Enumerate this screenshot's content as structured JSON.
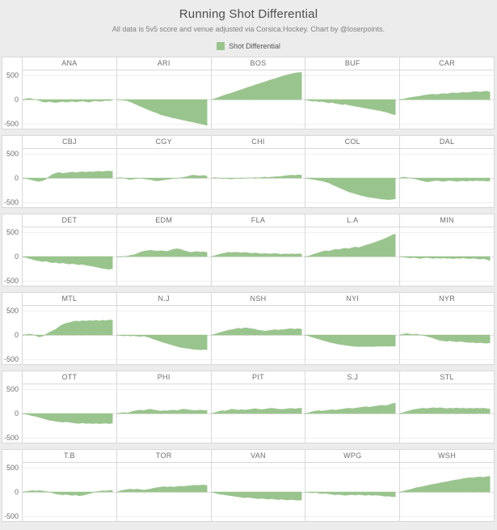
{
  "title": "Running Shot Differential",
  "subtitle": "All data is 5v5 score and venue adjusted via Corsica.Hockey. Chart by @loserpoints.",
  "legend": {
    "label": "Shot Differential",
    "color": "#9ac48e"
  },
  "chart_data": {
    "type": "area",
    "title": "Running Shot Differential",
    "xlabel": "",
    "ylabel": "",
    "ylim": [
      -600,
      600
    ],
    "yticks": [
      "500",
      "0",
      "-500"
    ],
    "ytick_values": [
      500,
      0,
      -500
    ],
    "grid_rows": 6,
    "grid_cols": 5,
    "x_end_fraction": 0.96,
    "fill_color": "#9ac48e",
    "legend_position": "top",
    "grid_on": true,
    "series": [
      {
        "name": "ANA",
        "values": [
          0,
          15,
          25,
          10,
          -5,
          -20,
          -45,
          -55,
          -40,
          -55,
          -65,
          -50,
          -40,
          -55,
          -45,
          -35,
          -50,
          -40,
          -30,
          -45,
          -55,
          -35,
          -25,
          -40,
          -30,
          -20,
          -25,
          -10
        ]
      },
      {
        "name": "ARI",
        "values": [
          0,
          -5,
          -15,
          -25,
          -50,
          -80,
          -110,
          -140,
          -170,
          -200,
          -230,
          -255,
          -280,
          -310,
          -330,
          -345,
          -365,
          -380,
          -395,
          -410,
          -425,
          -440,
          -455,
          -470,
          -485,
          -500,
          -515,
          -535
        ]
      },
      {
        "name": "BOS",
        "values": [
          0,
          20,
          45,
          70,
          95,
          115,
          135,
          160,
          185,
          205,
          230,
          255,
          275,
          300,
          320,
          345,
          365,
          390,
          410,
          430,
          455,
          475,
          495,
          515,
          530,
          545,
          555,
          560
        ]
      },
      {
        "name": "BUF",
        "values": [
          0,
          -20,
          -35,
          -30,
          -45,
          -40,
          -55,
          -70,
          -60,
          -80,
          -90,
          -105,
          -95,
          -115,
          -125,
          -140,
          -150,
          -165,
          -175,
          -190,
          -200,
          -215,
          -225,
          -240,
          -255,
          -275,
          -300,
          -315
        ]
      },
      {
        "name": "CAR",
        "values": [
          0,
          10,
          25,
          40,
          50,
          60,
          70,
          85,
          95,
          105,
          110,
          100,
          115,
          125,
          115,
          130,
          140,
          130,
          140,
          150,
          140,
          150,
          160,
          165,
          155,
          165,
          175,
          155
        ]
      },
      {
        "name": "CBJ",
        "values": [
          0,
          -10,
          -25,
          -45,
          -60,
          -70,
          -55,
          -25,
          30,
          75,
          100,
          115,
          95,
          105,
          115,
          125,
          110,
          120,
          130,
          120,
          130,
          125,
          135,
          140,
          130,
          140,
          145,
          135
        ]
      },
      {
        "name": "CGY",
        "values": [
          0,
          10,
          -5,
          -20,
          -30,
          -20,
          -10,
          -5,
          -15,
          -25,
          -35,
          -50,
          -60,
          -50,
          -40,
          -30,
          -20,
          -10,
          -5,
          5,
          15,
          30,
          50,
          60,
          50,
          45,
          55,
          40
        ]
      },
      {
        "name": "CHI",
        "values": [
          0,
          10,
          0,
          -10,
          -5,
          -15,
          -20,
          -10,
          -5,
          -15,
          -5,
          5,
          0,
          10,
          5,
          10,
          20,
          10,
          20,
          25,
          30,
          35,
          45,
          55,
          60,
          55,
          65,
          60
        ]
      },
      {
        "name": "COL",
        "values": [
          0,
          -15,
          -25,
          -35,
          -50,
          -60,
          -80,
          -100,
          -135,
          -165,
          -195,
          -225,
          -255,
          -285,
          -305,
          -325,
          -345,
          -365,
          -380,
          -395,
          -405,
          -415,
          -425,
          -435,
          -440,
          -445,
          -440,
          -430
        ]
      },
      {
        "name": "DAL",
        "values": [
          0,
          20,
          10,
          0,
          -10,
          -25,
          -45,
          -60,
          -80,
          -70,
          -60,
          -50,
          -60,
          -70,
          -60,
          -50,
          -60,
          -70,
          -60,
          -55,
          -65,
          -55,
          -60,
          -50,
          -60,
          -55,
          -65,
          -60
        ]
      },
      {
        "name": "DET",
        "values": [
          0,
          -20,
          -40,
          -60,
          -80,
          -90,
          -105,
          -95,
          -115,
          -130,
          -120,
          -140,
          -130,
          -145,
          -155,
          -145,
          -160,
          -170,
          -160,
          -180,
          -190,
          -200,
          -215,
          -230,
          -245,
          -255,
          -265,
          -250
        ]
      },
      {
        "name": "EDM",
        "values": [
          0,
          -10,
          0,
          10,
          25,
          35,
          60,
          90,
          110,
          120,
          130,
          120,
          110,
          120,
          115,
          105,
          130,
          150,
          160,
          150,
          125,
          105,
          85,
          95,
          105,
          90,
          100,
          80
        ]
      },
      {
        "name": "FLA",
        "values": [
          0,
          20,
          40,
          60,
          70,
          90,
          80,
          90,
          85,
          75,
          85,
          75,
          65,
          75,
          65,
          55,
          65,
          55,
          55,
          65,
          55,
          45,
          55,
          50,
          55,
          50,
          55,
          50
        ]
      },
      {
        "name": "L.A",
        "values": [
          0,
          10,
          35,
          60,
          80,
          100,
          120,
          110,
          130,
          150,
          140,
          160,
          170,
          160,
          180,
          195,
          185,
          205,
          230,
          250,
          270,
          295,
          320,
          345,
          375,
          405,
          440,
          465
        ]
      },
      {
        "name": "MIN",
        "values": [
          0,
          -10,
          -20,
          -30,
          -20,
          -30,
          -40,
          -30,
          -20,
          -30,
          -40,
          -30,
          -40,
          -30,
          -40,
          -35,
          -45,
          -35,
          -40,
          -30,
          -40,
          -45,
          -35,
          -45,
          -55,
          -45,
          -60,
          -85
        ]
      },
      {
        "name": "MTL",
        "values": [
          0,
          10,
          20,
          10,
          -15,
          -40,
          -25,
          15,
          55,
          85,
          120,
          175,
          215,
          240,
          255,
          275,
          290,
          280,
          295,
          285,
          300,
          290,
          305,
          290,
          305,
          295,
          310,
          305
        ]
      },
      {
        "name": "N.J",
        "values": [
          0,
          -10,
          -20,
          -10,
          -20,
          -15,
          -25,
          -30,
          -20,
          -40,
          -60,
          -90,
          -110,
          -135,
          -155,
          -175,
          -195,
          -215,
          -235,
          -255,
          -265,
          -275,
          -285,
          -295,
          -300,
          -305,
          -300,
          -300
        ]
      },
      {
        "name": "NSH",
        "values": [
          0,
          20,
          40,
          60,
          80,
          100,
          110,
          125,
          140,
          130,
          150,
          140,
          130,
          120,
          100,
          90,
          80,
          90,
          100,
          110,
          100,
          110,
          115,
          125,
          130,
          120,
          130,
          120
        ]
      },
      {
        "name": "NYI",
        "values": [
          0,
          -20,
          -45,
          -65,
          -85,
          -105,
          -125,
          -145,
          -160,
          -175,
          -190,
          -200,
          -210,
          -220,
          -230,
          -235,
          -240,
          -235,
          -240,
          -235,
          -240,
          -235,
          -230,
          -235,
          -230,
          -235,
          -230,
          -230
        ]
      },
      {
        "name": "NYR",
        "values": [
          0,
          20,
          30,
          20,
          10,
          20,
          0,
          -10,
          -25,
          -45,
          -65,
          -90,
          -110,
          -120,
          -130,
          -120,
          -130,
          -140,
          -130,
          -140,
          -150,
          -155,
          -150,
          -165,
          -155,
          -165,
          -170,
          -160
        ]
      },
      {
        "name": "OTT",
        "values": [
          0,
          -15,
          -30,
          -50,
          -60,
          -80,
          -100,
          -120,
          -140,
          -150,
          -160,
          -170,
          -180,
          -170,
          -180,
          -190,
          -200,
          -205,
          -195,
          -205,
          -200,
          -210,
          -200,
          -210,
          -205,
          -200,
          -210,
          -200
        ]
      },
      {
        "name": "PHI",
        "values": [
          0,
          10,
          20,
          10,
          30,
          50,
          60,
          70,
          60,
          80,
          90,
          75,
          60,
          50,
          60,
          55,
          65,
          70,
          60,
          80,
          90,
          80,
          70,
          60,
          65,
          70,
          65,
          60
        ]
      },
      {
        "name": "PIT",
        "values": [
          0,
          20,
          40,
          60,
          50,
          70,
          90,
          80,
          70,
          80,
          70,
          80,
          90,
          100,
          90,
          80,
          90,
          100,
          110,
          100,
          90,
          85,
          90,
          100,
          105,
          95,
          105,
          110
        ]
      },
      {
        "name": "S.J",
        "values": [
          0,
          15,
          35,
          50,
          60,
          50,
          60,
          70,
          80,
          70,
          80,
          90,
          100,
          110,
          100,
          110,
          120,
          130,
          140,
          130,
          140,
          150,
          160,
          170,
          160,
          175,
          200,
          215
        ]
      },
      {
        "name": "STL",
        "values": [
          0,
          20,
          40,
          60,
          80,
          90,
          100,
          110,
          100,
          110,
          120,
          110,
          120,
          110,
          100,
          110,
          105,
          115,
          105,
          110,
          100,
          110,
          100,
          110,
          105,
          110,
          100,
          90
        ]
      },
      {
        "name": "T.B",
        "values": [
          0,
          10,
          20,
          30,
          20,
          30,
          20,
          10,
          0,
          -20,
          -40,
          -50,
          -60,
          -50,
          -60,
          -70,
          -60,
          -80,
          -70,
          -55,
          -35,
          -15,
          5,
          15,
          25,
          20,
          30,
          35
        ]
      },
      {
        "name": "TOR",
        "values": [
          0,
          25,
          40,
          50,
          60,
          50,
          60,
          50,
          40,
          50,
          60,
          80,
          90,
          100,
          110,
          100,
          110,
          100,
          110,
          120,
          115,
          125,
          130,
          140,
          135,
          140,
          145,
          135
        ]
      },
      {
        "name": "VAN",
        "values": [
          0,
          -20,
          -40,
          -50,
          -60,
          -70,
          -80,
          -90,
          -100,
          -110,
          -120,
          -110,
          -120,
          -130,
          -140,
          -130,
          -140,
          -150,
          -140,
          -150,
          -160,
          -150,
          -160,
          -165,
          -155,
          -165,
          -170,
          -165
        ]
      },
      {
        "name": "WPG",
        "values": [
          0,
          -10,
          -20,
          -10,
          -25,
          -35,
          -25,
          -40,
          -50,
          -60,
          -50,
          -60,
          -70,
          -60,
          -55,
          -65,
          -55,
          -60,
          -70,
          -60,
          -70,
          -65,
          -70,
          -80,
          -90,
          -85,
          -95,
          -100
        ]
      },
      {
        "name": "WSH",
        "values": [
          0,
          15,
          35,
          50,
          70,
          90,
          100,
          115,
          130,
          145,
          160,
          170,
          185,
          200,
          210,
          225,
          240,
          250,
          260,
          275,
          285,
          295,
          290,
          305,
          310,
          300,
          315,
          325
        ]
      }
    ]
  }
}
